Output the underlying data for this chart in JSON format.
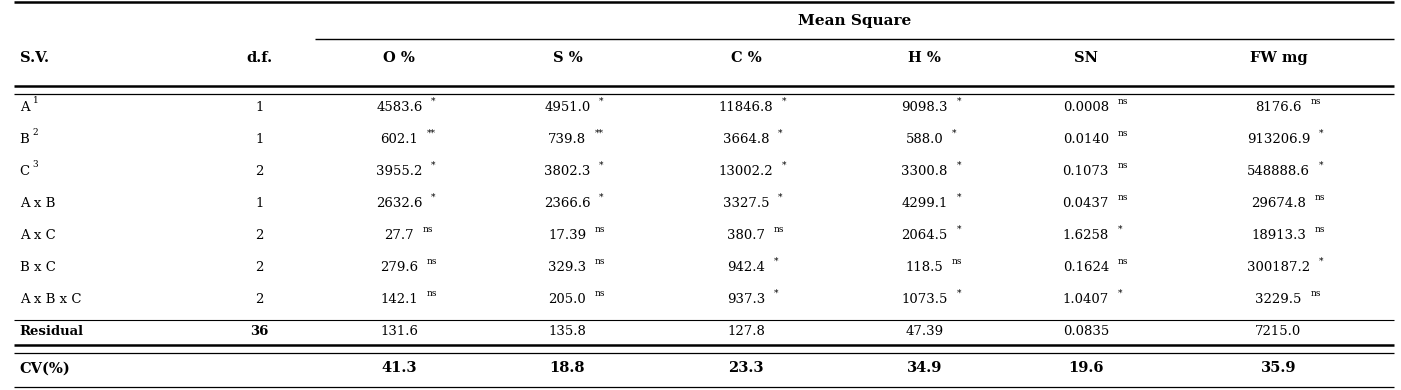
{
  "title": "Mean Square",
  "col_headers": [
    "S.V.",
    "d.f.",
    "O %",
    "S %",
    "C %",
    "H %",
    "SN",
    "FW mg"
  ],
  "rows": [
    {
      "sv": "A",
      "sv_sup": "1",
      "df": "1",
      "o": [
        "4583.6",
        "*"
      ],
      "s": [
        "4951.0",
        "*"
      ],
      "c": [
        "11846.8",
        "*"
      ],
      "h": [
        "9098.3",
        "*"
      ],
      "sn": [
        "0.0008",
        "ns"
      ],
      "fw": [
        "8176.6",
        "ns"
      ]
    },
    {
      "sv": "B",
      "sv_sup": "2",
      "df": "1",
      "o": [
        "602.1",
        "**"
      ],
      "s": [
        "739.8",
        "**"
      ],
      "c": [
        "3664.8",
        "*"
      ],
      "h": [
        "588.0",
        "*"
      ],
      "sn": [
        "0.0140",
        "ns"
      ],
      "fw": [
        "913206.9",
        "*"
      ]
    },
    {
      "sv": "C",
      "sv_sup": "3",
      "df": "2",
      "o": [
        "3955.2",
        "*"
      ],
      "s": [
        "3802.3",
        "*"
      ],
      "c": [
        "13002.2",
        "*"
      ],
      "h": [
        "3300.8",
        "*"
      ],
      "sn": [
        "0.1073",
        "ns"
      ],
      "fw": [
        "548888.6",
        "*"
      ]
    },
    {
      "sv": "A x B",
      "sv_sup": "",
      "df": "1",
      "o": [
        "2632.6",
        "*"
      ],
      "s": [
        "2366.6",
        "*"
      ],
      "c": [
        "3327.5",
        "*"
      ],
      "h": [
        "4299.1",
        "*"
      ],
      "sn": [
        "0.0437",
        "ns"
      ],
      "fw": [
        "29674.8",
        "ns"
      ]
    },
    {
      "sv": "A x C",
      "sv_sup": "",
      "df": "2",
      "o": [
        "27.7",
        "ns"
      ],
      "s": [
        "17.39",
        "ns"
      ],
      "c": [
        "380.7",
        "ns"
      ],
      "h": [
        "2064.5",
        "*"
      ],
      "sn": [
        "1.6258",
        "*"
      ],
      "fw": [
        "18913.3",
        "ns"
      ]
    },
    {
      "sv": "B x C",
      "sv_sup": "",
      "df": "2",
      "o": [
        "279.6",
        "ns"
      ],
      "s": [
        "329.3",
        "ns"
      ],
      "c": [
        "942.4",
        "*"
      ],
      "h": [
        "118.5",
        "ns"
      ],
      "sn": [
        "0.1624",
        "ns"
      ],
      "fw": [
        "300187.2",
        "*"
      ]
    },
    {
      "sv": "A x B x C",
      "sv_sup": "",
      "df": "2",
      "o": [
        "142.1",
        "ns"
      ],
      "s": [
        "205.0",
        "ns"
      ],
      "c": [
        "937.3",
        "*"
      ],
      "h": [
        "1073.5",
        "*"
      ],
      "sn": [
        "1.0407",
        "*"
      ],
      "fw": [
        "3229.5",
        "ns"
      ]
    },
    {
      "sv": "Residual",
      "sv_sup": "",
      "df": "36",
      "o": [
        "131.6",
        ""
      ],
      "s": [
        "135.8",
        ""
      ],
      "c": [
        "127.8",
        ""
      ],
      "h": [
        "47.39",
        ""
      ],
      "sn": [
        "0.0835",
        ""
      ],
      "fw": [
        "7215.0",
        ""
      ]
    }
  ],
  "cv_row": {
    "sv": "CV(%)",
    "df": "",
    "o": "41.3",
    "s": "18.8",
    "c": "23.3",
    "h": "34.9",
    "sn": "19.6",
    "fw": "35.9"
  },
  "bg_color": "#ffffff",
  "text_color": "#000000",
  "fig_width": 14.01,
  "fig_height": 3.9,
  "dpi": 100
}
